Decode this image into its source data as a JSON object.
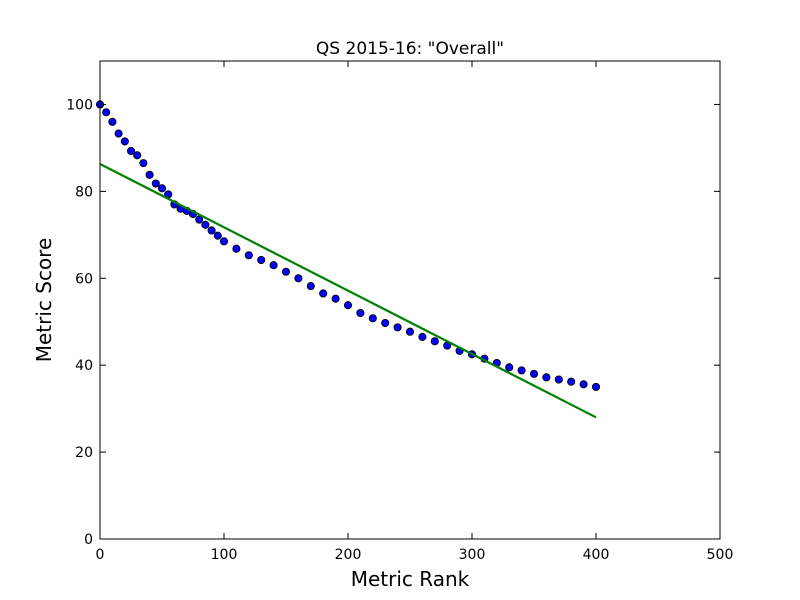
{
  "chart_data": {
    "type": "scatter",
    "title": "QS 2015-16: \"Overall\"",
    "xlabel": "Metric Rank",
    "ylabel": "Metric Score",
    "xlim": [
      0,
      500
    ],
    "ylim": [
      0,
      110
    ],
    "xticks": [
      0,
      100,
      200,
      300,
      400,
      500
    ],
    "yticks": [
      0,
      20,
      40,
      60,
      80,
      100
    ],
    "grid": false,
    "colors": {
      "points": "#0000ff",
      "fit_line": "#008000",
      "axes": "#000000"
    },
    "series": [
      {
        "kind": "points",
        "points": [
          [
            0,
            100
          ],
          [
            5,
            98.2
          ],
          [
            10,
            96
          ],
          [
            15,
            93.3
          ],
          [
            20,
            91.5
          ],
          [
            25,
            89.3
          ],
          [
            30,
            88.3
          ],
          [
            35,
            86.5
          ],
          [
            40,
            83.8
          ],
          [
            45,
            81.8
          ],
          [
            50,
            80.7
          ],
          [
            55,
            79.3
          ],
          [
            60,
            77
          ],
          [
            65,
            76
          ],
          [
            70,
            75.5
          ],
          [
            75,
            74.8
          ],
          [
            80,
            73.5
          ],
          [
            85,
            72.3
          ],
          [
            90,
            71
          ],
          [
            95,
            69.8
          ],
          [
            100,
            68.5
          ],
          [
            110,
            66.8
          ],
          [
            120,
            65.3
          ],
          [
            130,
            64.2
          ],
          [
            140,
            63
          ],
          [
            150,
            61.5
          ],
          [
            160,
            60
          ],
          [
            170,
            58.2
          ],
          [
            180,
            56.5
          ],
          [
            190,
            55.3
          ],
          [
            200,
            53.8
          ],
          [
            210,
            52
          ],
          [
            220,
            50.8
          ],
          [
            230,
            49.7
          ],
          [
            240,
            48.7
          ],
          [
            250,
            47.7
          ],
          [
            260,
            46.5
          ],
          [
            270,
            45.5
          ],
          [
            280,
            44.5
          ],
          [
            290,
            43.3
          ],
          [
            300,
            42.5
          ],
          [
            310,
            41.5
          ],
          [
            320,
            40.5
          ],
          [
            330,
            39.5
          ],
          [
            340,
            38.8
          ],
          [
            350,
            38
          ],
          [
            360,
            37.2
          ],
          [
            370,
            36.7
          ],
          [
            380,
            36.2
          ],
          [
            390,
            35.6
          ],
          [
            400,
            35
          ]
        ]
      },
      {
        "kind": "line",
        "points": [
          [
            0,
            86.3
          ],
          [
            400,
            28
          ]
        ]
      }
    ]
  }
}
